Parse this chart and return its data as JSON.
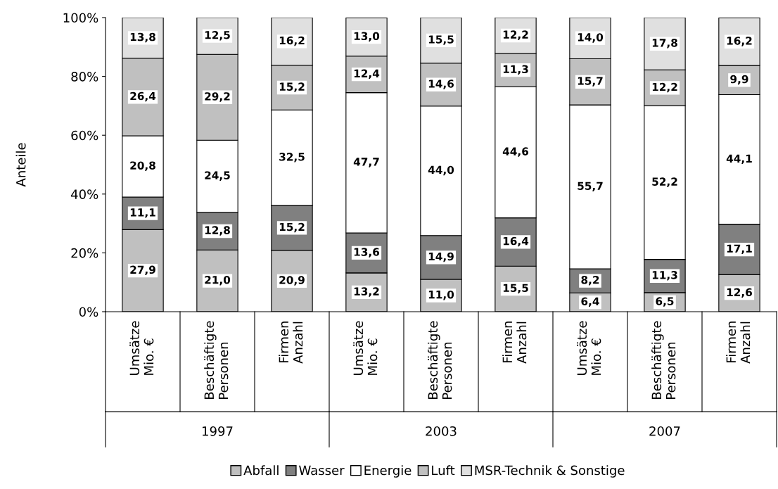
{
  "chart_data": {
    "type": "bar",
    "stacked": true,
    "ylabel": "Anteile",
    "categories": [
      "Umsätze\nMio. €",
      "Beschäftigte\nPersonen",
      "Firmen\nAnzahl",
      "Umsätze\nMio. €",
      "Beschäftigte\nPersonen",
      "Firmen\nAnzahl",
      "Umsätze\nMio. €",
      "Beschäftigte\nPersonen",
      "Firmen\nAnzahl"
    ],
    "series": [
      {
        "name": "Abfall",
        "color": "#c0c0c0",
        "values": [
          27.9,
          21.0,
          20.9,
          13.2,
          11.0,
          15.5,
          6.4,
          6.5,
          12.6
        ],
        "value_labels": [
          "27,9",
          "21,0",
          "20,9",
          "13,2",
          "11,0",
          "15,5",
          "6,4",
          "6,5",
          "12,6"
        ]
      },
      {
        "name": "Wasser",
        "color": "#808080",
        "values": [
          11.1,
          12.8,
          15.2,
          13.6,
          14.9,
          16.4,
          8.2,
          11.3,
          17.1
        ],
        "value_labels": [
          "11,1",
          "12,8",
          "15,2",
          "13,6",
          "14,9",
          "16,4",
          "8,2",
          "11,3",
          "17,1"
        ]
      },
      {
        "name": "Energie",
        "color": "#ffffff",
        "values": [
          20.8,
          24.5,
          32.5,
          47.7,
          44.0,
          44.6,
          55.7,
          52.2,
          44.1
        ],
        "value_labels": [
          "20,8",
          "24,5",
          "32,5",
          "47,7",
          "44,0",
          "44,6",
          "55,7",
          "52,2",
          "44,1"
        ]
      },
      {
        "name": "Luft",
        "color": "#c0c0c0",
        "values": [
          26.4,
          29.2,
          15.2,
          12.4,
          14.6,
          11.3,
          15.7,
          12.2,
          9.9
        ],
        "value_labels": [
          "26,4",
          "29,2",
          "15,2",
          "12,4",
          "14,6",
          "11,3",
          "15,7",
          "12,2",
          "9,9"
        ]
      },
      {
        "name": "MSR-Technik & Sonstige",
        "color": "#e0e0e0",
        "values": [
          13.8,
          12.5,
          16.2,
          13.0,
          15.5,
          12.2,
          14.0,
          17.8,
          16.2
        ],
        "value_labels": [
          "13,8",
          "12,5",
          "16,2",
          "13,0",
          "15,5",
          "12,2",
          "14,0",
          "17,8",
          "16,2"
        ]
      }
    ],
    "annotations": [
      "1997",
      "2003",
      "2007"
    ],
    "ylim": [
      0,
      100
    ],
    "yticks": [
      {
        "value": 0,
        "label": "0%"
      },
      {
        "value": 20,
        "label": "20%"
      },
      {
        "value": 40,
        "label": "40%"
      },
      {
        "value": 60,
        "label": "60%"
      },
      {
        "value": 80,
        "label": "80%"
      },
      {
        "value": 100,
        "label": "100%"
      }
    ],
    "grid": false,
    "legend": "bottom"
  }
}
